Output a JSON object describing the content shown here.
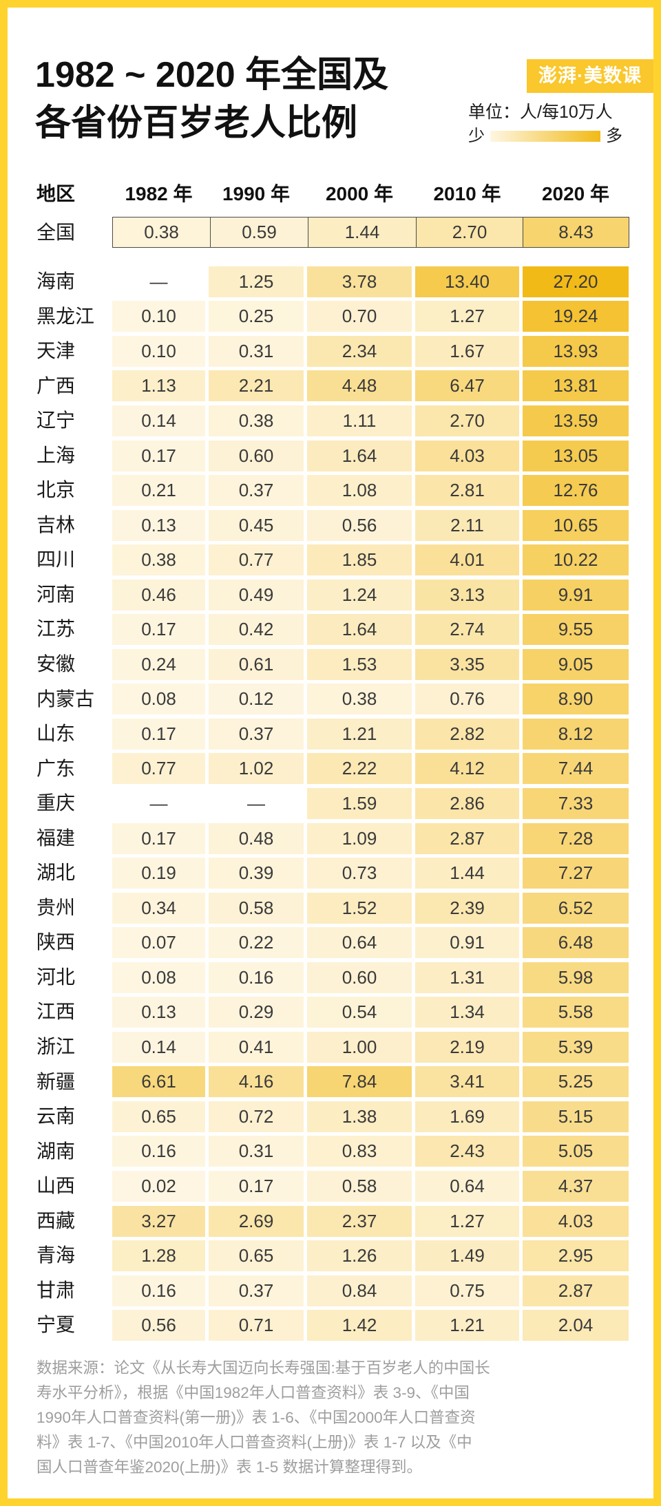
{
  "brand": {
    "logo_text": "澎湃·美数课",
    "frame_color": "#FFD32E",
    "logo_color": "#FAC72C"
  },
  "chart_data": {
    "type": "heatmap",
    "title_lines": [
      "1982 ~ 2020 年全国及",
      "各省份百岁老人比例"
    ],
    "unit": "单位：人/每10万人",
    "legend": {
      "low_label": "少",
      "high_label": "多"
    },
    "color_scale": {
      "low": "#FEF6E2",
      "high": "#F2BA16"
    },
    "missing_label": "—",
    "row_header": "地区",
    "columns": [
      "1982 年",
      "1990 年",
      "2000 年",
      "2010 年",
      "2020 年"
    ],
    "national": {
      "region": "全国",
      "values": [
        0.38,
        0.59,
        1.44,
        2.7,
        8.43
      ]
    },
    "rows": [
      {
        "region": "海南",
        "values": [
          null,
          1.25,
          3.78,
          13.4,
          27.2
        ]
      },
      {
        "region": "黑龙江",
        "values": [
          0.1,
          0.25,
          0.7,
          1.27,
          19.24
        ]
      },
      {
        "region": "天津",
        "values": [
          0.1,
          0.31,
          2.34,
          1.67,
          13.93
        ]
      },
      {
        "region": "广西",
        "values": [
          1.13,
          2.21,
          4.48,
          6.47,
          13.81
        ]
      },
      {
        "region": "辽宁",
        "values": [
          0.14,
          0.38,
          1.11,
          2.7,
          13.59
        ]
      },
      {
        "region": "上海",
        "values": [
          0.17,
          0.6,
          1.64,
          4.03,
          13.05
        ]
      },
      {
        "region": "北京",
        "values": [
          0.21,
          0.37,
          1.08,
          2.81,
          12.76
        ]
      },
      {
        "region": "吉林",
        "values": [
          0.13,
          0.45,
          0.56,
          2.11,
          10.65
        ]
      },
      {
        "region": "四川",
        "values": [
          0.38,
          0.77,
          1.85,
          4.01,
          10.22
        ]
      },
      {
        "region": "河南",
        "values": [
          0.46,
          0.49,
          1.24,
          3.13,
          9.91
        ]
      },
      {
        "region": "江苏",
        "values": [
          0.17,
          0.42,
          1.64,
          2.74,
          9.55
        ]
      },
      {
        "region": "安徽",
        "values": [
          0.24,
          0.61,
          1.53,
          3.35,
          9.05
        ]
      },
      {
        "region": "内蒙古",
        "values": [
          0.08,
          0.12,
          0.38,
          0.76,
          8.9
        ]
      },
      {
        "region": "山东",
        "values": [
          0.17,
          0.37,
          1.21,
          2.82,
          8.12
        ]
      },
      {
        "region": "广东",
        "values": [
          0.77,
          1.02,
          2.22,
          4.12,
          7.44
        ]
      },
      {
        "region": "重庆",
        "values": [
          null,
          null,
          1.59,
          2.86,
          7.33
        ]
      },
      {
        "region": "福建",
        "values": [
          0.17,
          0.48,
          1.09,
          2.87,
          7.28
        ]
      },
      {
        "region": "湖北",
        "values": [
          0.19,
          0.39,
          0.73,
          1.44,
          7.27
        ]
      },
      {
        "region": "贵州",
        "values": [
          0.34,
          0.58,
          1.52,
          2.39,
          6.52
        ]
      },
      {
        "region": "陕西",
        "values": [
          0.07,
          0.22,
          0.64,
          0.91,
          6.48
        ]
      },
      {
        "region": "河北",
        "values": [
          0.08,
          0.16,
          0.6,
          1.31,
          5.98
        ]
      },
      {
        "region": "江西",
        "values": [
          0.13,
          0.29,
          0.54,
          1.34,
          5.58
        ]
      },
      {
        "region": "浙江",
        "values": [
          0.14,
          0.41,
          1.0,
          2.19,
          5.39
        ]
      },
      {
        "region": "新疆",
        "values": [
          6.61,
          4.16,
          7.84,
          3.41,
          5.25
        ]
      },
      {
        "region": "云南",
        "values": [
          0.65,
          0.72,
          1.38,
          1.69,
          5.15
        ]
      },
      {
        "region": "湖南",
        "values": [
          0.16,
          0.31,
          0.83,
          2.43,
          5.05
        ]
      },
      {
        "region": "山西",
        "values": [
          0.02,
          0.17,
          0.58,
          0.64,
          4.37
        ]
      },
      {
        "region": "西藏",
        "values": [
          3.27,
          2.69,
          2.37,
          1.27,
          4.03
        ]
      },
      {
        "region": "青海",
        "values": [
          1.28,
          0.65,
          1.26,
          1.49,
          2.95
        ]
      },
      {
        "region": "甘肃",
        "values": [
          0.16,
          0.37,
          0.84,
          0.75,
          2.87
        ]
      },
      {
        "region": "宁夏",
        "values": [
          0.56,
          0.71,
          1.42,
          1.21,
          2.04
        ]
      }
    ]
  },
  "source": {
    "lines": [
      "数据来源：论文《从长寿大国迈向长寿强国:基于百岁老人的中国长",
      "寿水平分析》，根据《中国1982年人口普查资料》表 3-9、《中国",
      "1990年人口普查资料(第一册)》表 1-6、《中国2000年人口普查资",
      "料》表 1-7、《中国2010年人口普查资料(上册)》表 1-7 以及《中",
      "国人口普查年鉴2020(上册)》表 1-5 数据计算整理得到。"
    ]
  }
}
